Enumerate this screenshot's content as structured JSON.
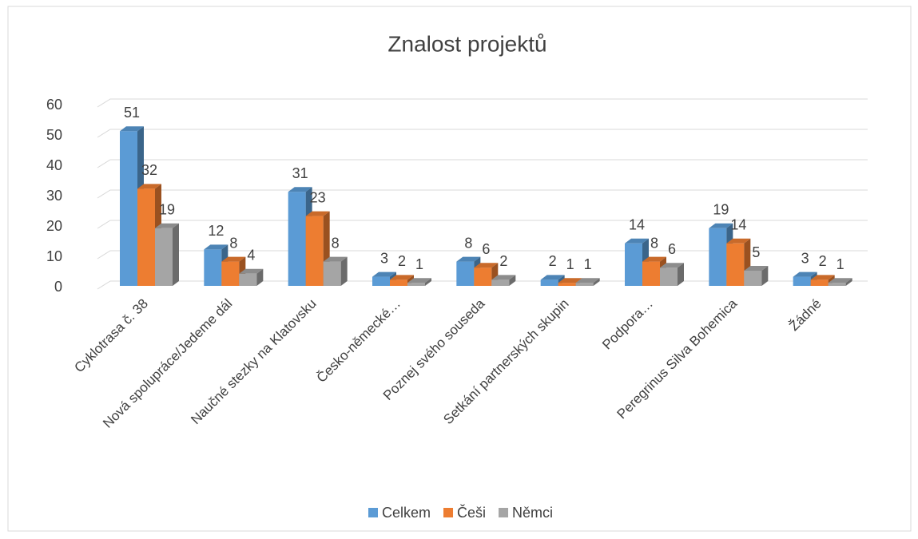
{
  "chart_data": {
    "type": "bar3d",
    "title": "Znalost projektů",
    "categories": [
      "Cyklotrasa č. 38",
      "Nová spolupráce/Jedeme dál",
      "Naučné stezky na Klatovsku",
      "Česko-německé…",
      "Poznej svého souseda",
      "Setkání partnerských skupin",
      "Podpora…",
      "Peregrinus Silva Bohemica",
      "Žádné"
    ],
    "series": [
      {
        "name": "Celkem",
        "color": "#5b9bd5",
        "values": [
          51,
          12,
          31,
          3,
          8,
          2,
          14,
          19,
          3
        ]
      },
      {
        "name": "Češi",
        "color": "#ed7d31",
        "values": [
          32,
          8,
          23,
          2,
          6,
          1,
          8,
          14,
          2
        ]
      },
      {
        "name": "Němci",
        "color": "#a5a5a5",
        "values": [
          19,
          4,
          8,
          1,
          2,
          1,
          6,
          5,
          1
        ]
      }
    ],
    "ylim": [
      0,
      60
    ],
    "yticks": [
      0,
      10,
      20,
      30,
      40,
      50,
      60
    ],
    "grid": true,
    "legend": "bottom"
  }
}
